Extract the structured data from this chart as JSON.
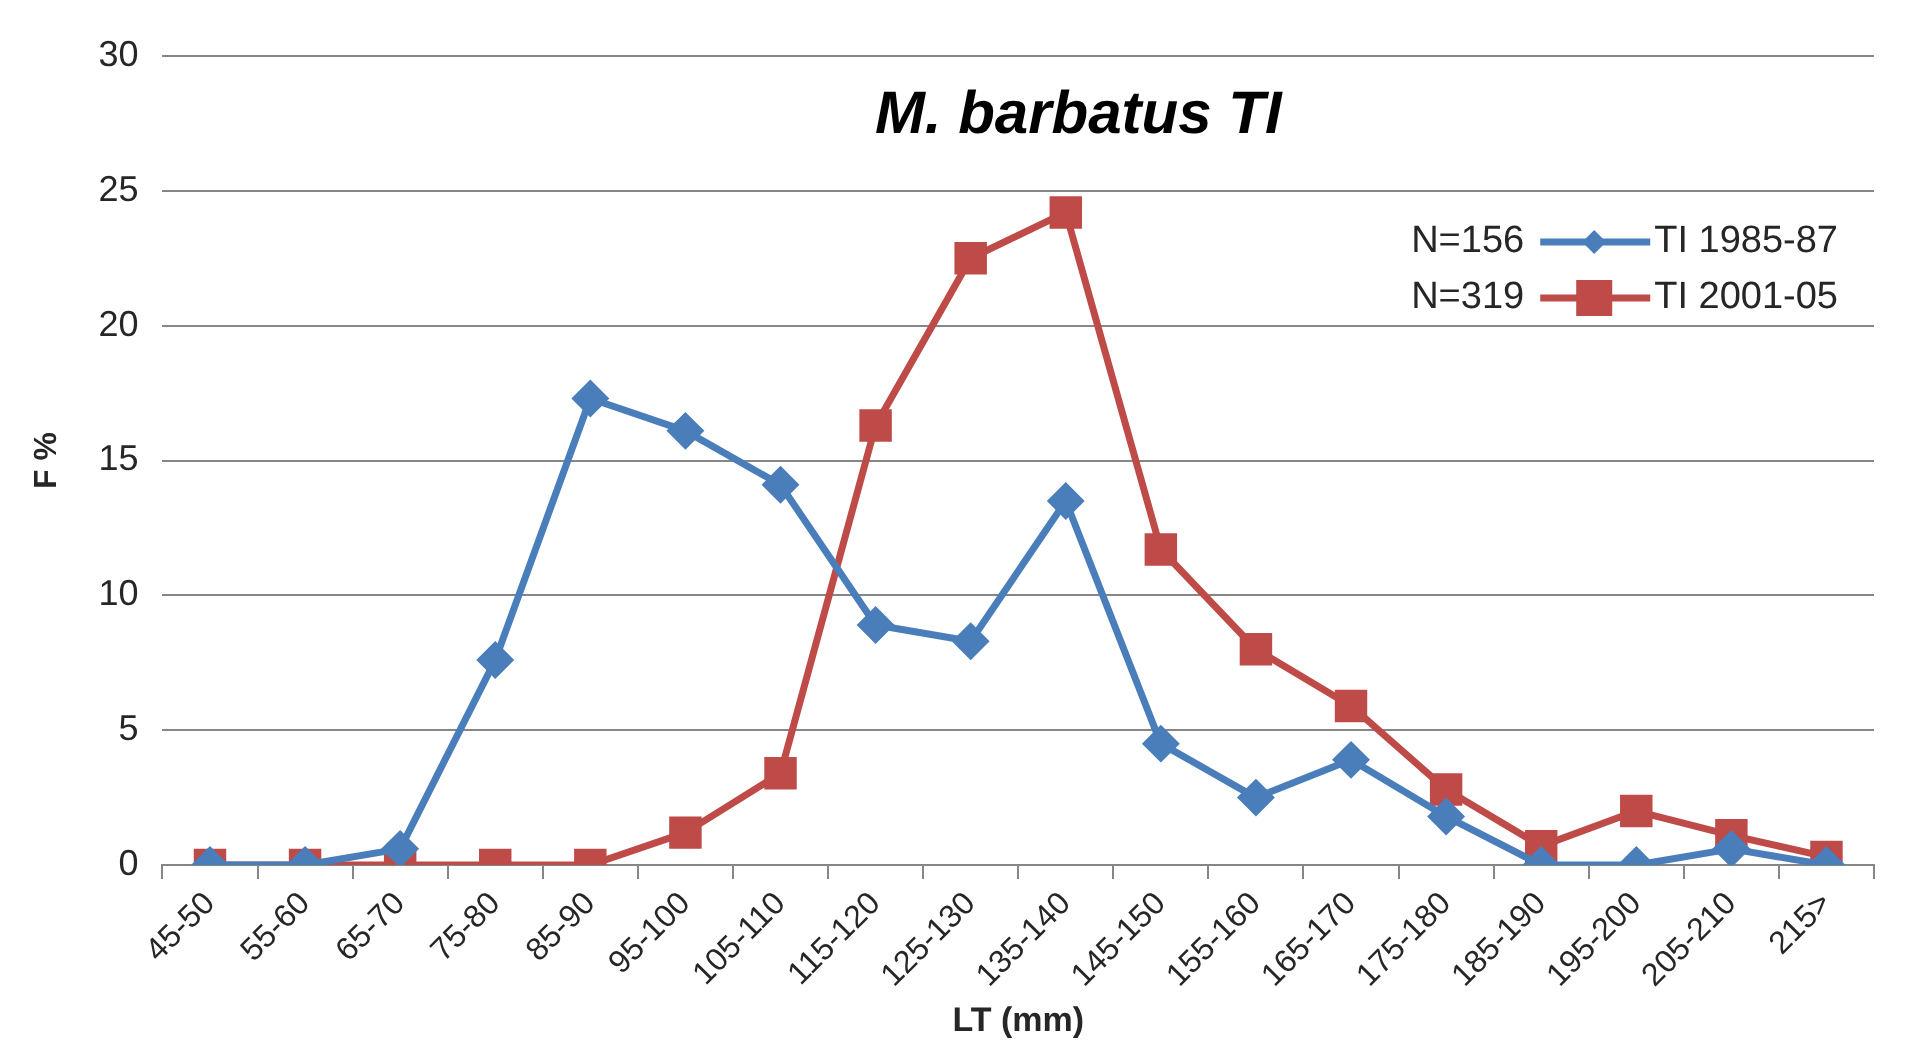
{
  "chart_data": {
    "type": "line",
    "title": "M. barbatus TI",
    "xlabel": "LT (mm)",
    "ylabel": "F %",
    "categories": [
      "45-50",
      "55-60",
      "65-70",
      "75-80",
      "85-90",
      "95-100",
      "105-110",
      "115-120",
      "125-130",
      "135-140",
      "145-150",
      "155-160",
      "165-170",
      "175-180",
      "185-190",
      "195-200",
      "205-210",
      "215>"
    ],
    "series": [
      {
        "name": "TI 1985-87",
        "color": "#4a7ebb",
        "marker": "diamond",
        "values": [
          0,
          0,
          0.6,
          7.6,
          17.3,
          16.1,
          14.1,
          8.9,
          8.3,
          13.5,
          4.5,
          2.5,
          3.9,
          1.8,
          0,
          0,
          0.6,
          0
        ]
      },
      {
        "name": "TI 2001-05",
        "color": "#be4b48",
        "marker": "square",
        "values": [
          0,
          0,
          0,
          0,
          0,
          1.2,
          3.4,
          16.3,
          22.5,
          24.2,
          11.7,
          8.0,
          5.9,
          2.8,
          0.7,
          2.0,
          1.1,
          0.3
        ]
      }
    ],
    "ylim": [
      0,
      30
    ],
    "yticks": [
      0,
      5,
      10,
      15,
      20,
      25,
      30
    ],
    "grid": "y",
    "legend": "top right",
    "annotations": [
      "N=156",
      "N=319"
    ]
  }
}
